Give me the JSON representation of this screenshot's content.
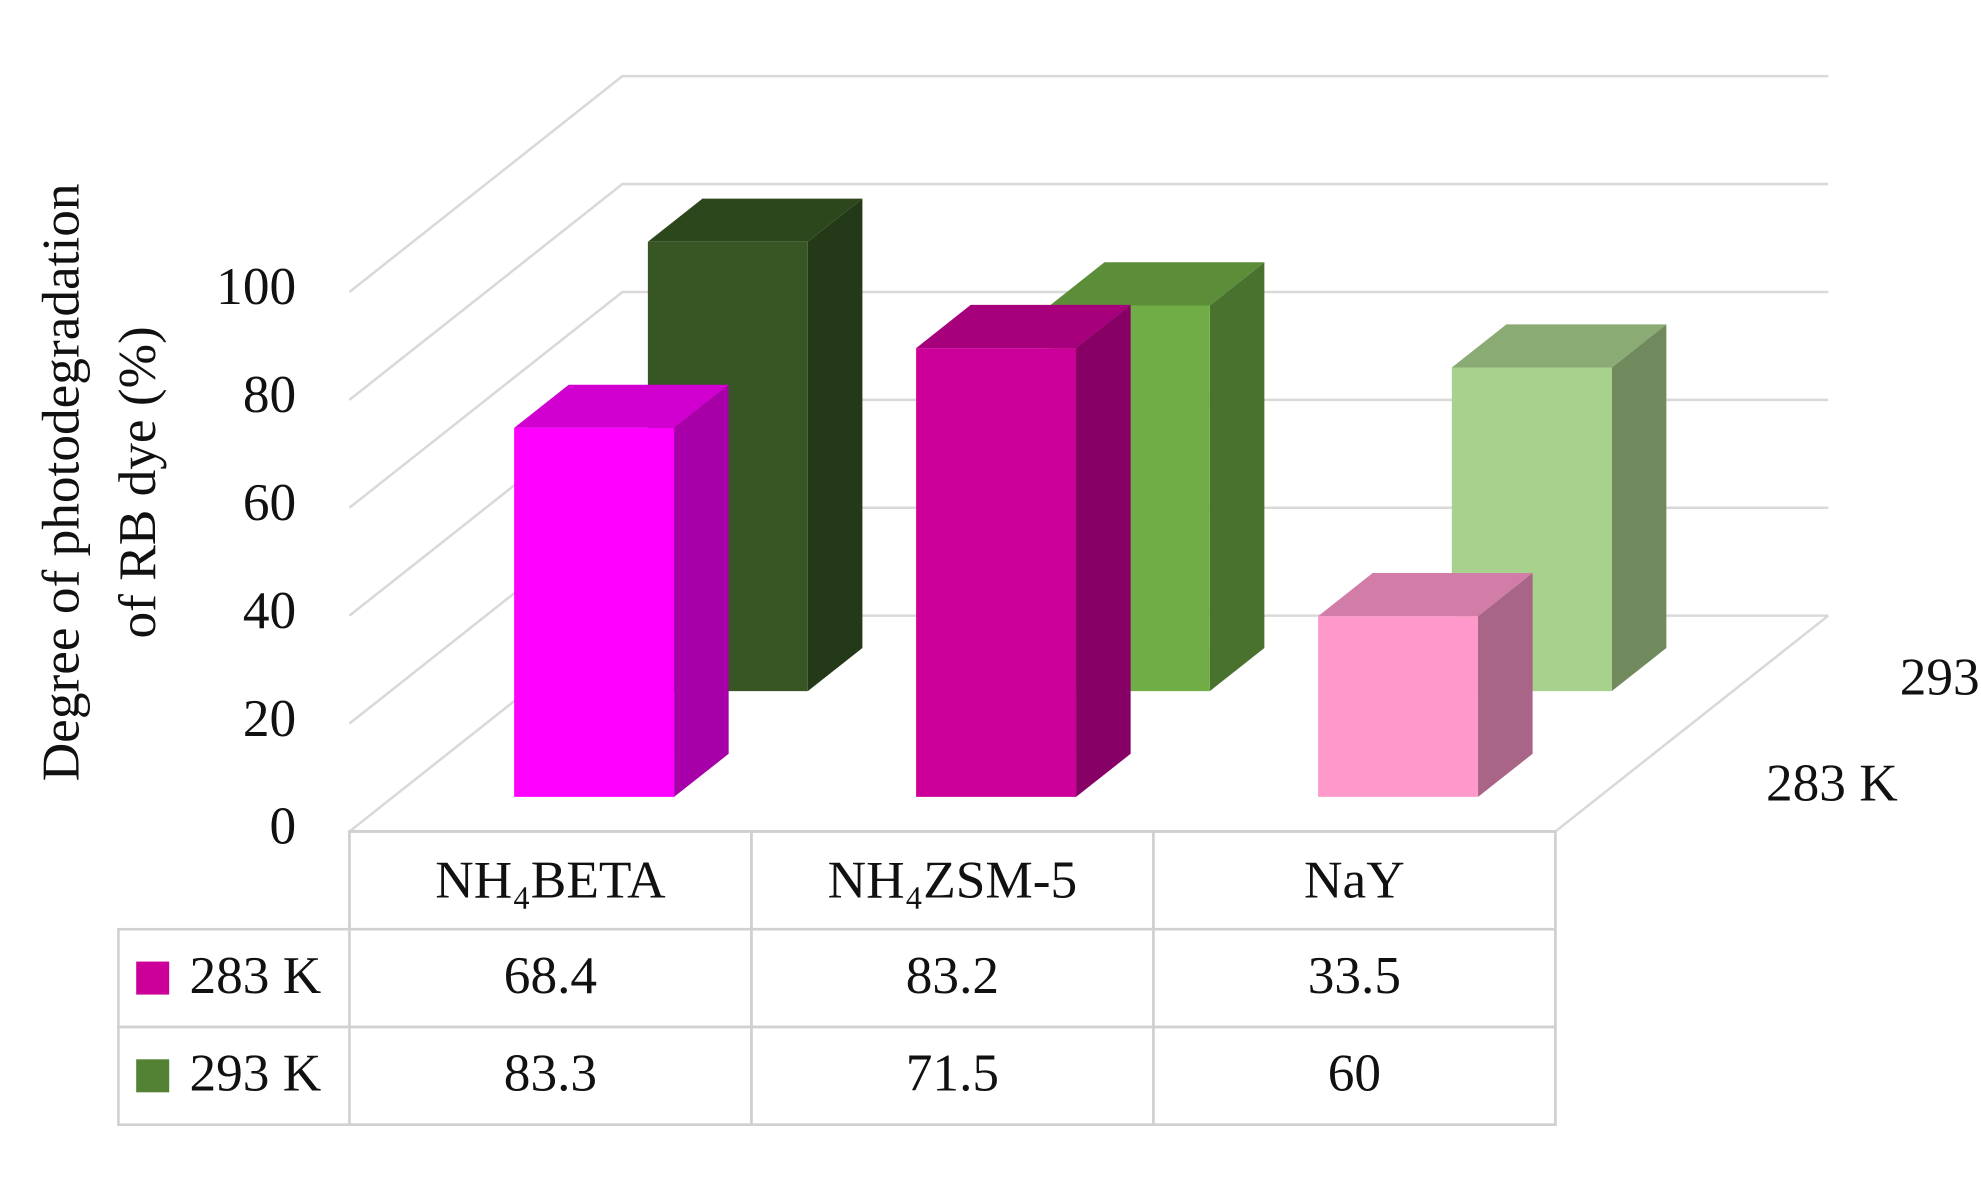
{
  "chart_data": {
    "type": "bar",
    "y_label": [
      "Degree of photodegradation",
      "of RB dye  (%)"
    ],
    "categories": [
      "NH₄BETA",
      "NH₄ZSM-5",
      "NaY"
    ],
    "series": [
      {
        "name": "283 K",
        "color": "#cc0099",
        "bar_colors": [
          "#ff00ff",
          "#cc0099",
          "#ff99cc"
        ],
        "values": [
          68.4,
          83.2,
          33.5
        ]
      },
      {
        "name": "293 K",
        "color": "#548235",
        "bar_colors": [
          "#375623",
          "#70ad47",
          "#a9d18e"
        ],
        "values": [
          83.3,
          71.5,
          60
        ]
      }
    ],
    "ylim": [
      0,
      100
    ],
    "yticks": [
      0,
      20,
      40,
      60,
      80,
      100
    ],
    "grid": true,
    "data_table": true
  }
}
